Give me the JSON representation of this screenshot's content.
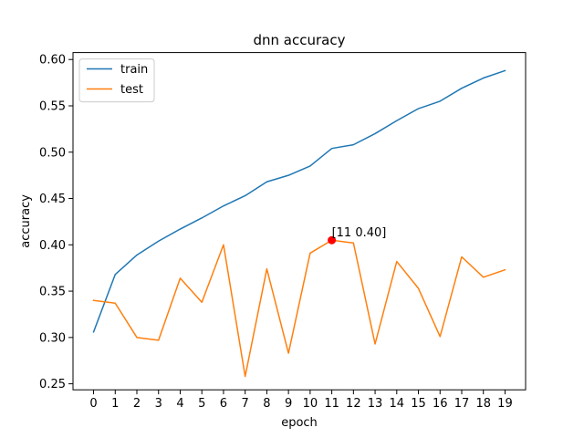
{
  "chart_data": {
    "type": "line",
    "title": "dnn accuracy",
    "xlabel": "epoch",
    "ylabel": "accuracy",
    "x": [
      0,
      1,
      2,
      3,
      4,
      5,
      6,
      7,
      8,
      9,
      10,
      11,
      12,
      13,
      14,
      15,
      16,
      17,
      18,
      19
    ],
    "xlim": [
      -0.95,
      19.95
    ],
    "ylim": [
      0.2435,
      0.6075
    ],
    "xticks": [
      "0",
      "1",
      "2",
      "3",
      "4",
      "5",
      "6",
      "7",
      "8",
      "9",
      "10",
      "11",
      "12",
      "13",
      "14",
      "15",
      "16",
      "17",
      "18",
      "19"
    ],
    "yticks": [
      "0.25",
      "0.30",
      "0.35",
      "0.40",
      "0.45",
      "0.50",
      "0.55",
      "0.60"
    ],
    "grid": false,
    "legend_position": "top-left",
    "series": [
      {
        "name": "train",
        "color": "#1f77b4",
        "values": [
          0.306,
          0.368,
          0.389,
          0.404,
          0.417,
          0.429,
          0.442,
          0.453,
          0.468,
          0.475,
          0.485,
          0.504,
          0.508,
          0.52,
          0.534,
          0.547,
          0.555,
          0.569,
          0.58,
          0.588
        ]
      },
      {
        "name": "test",
        "color": "#ff7f0e",
        "values": [
          0.34,
          0.337,
          0.3,
          0.297,
          0.364,
          0.338,
          0.4,
          0.258,
          0.374,
          0.283,
          0.391,
          0.405,
          0.402,
          0.293,
          0.382,
          0.353,
          0.301,
          0.387,
          0.365,
          0.373
        ]
      }
    ],
    "annotation": {
      "x": 11,
      "y": 0.405,
      "label": "[11 0.40]",
      "color": "#ff0000"
    }
  }
}
